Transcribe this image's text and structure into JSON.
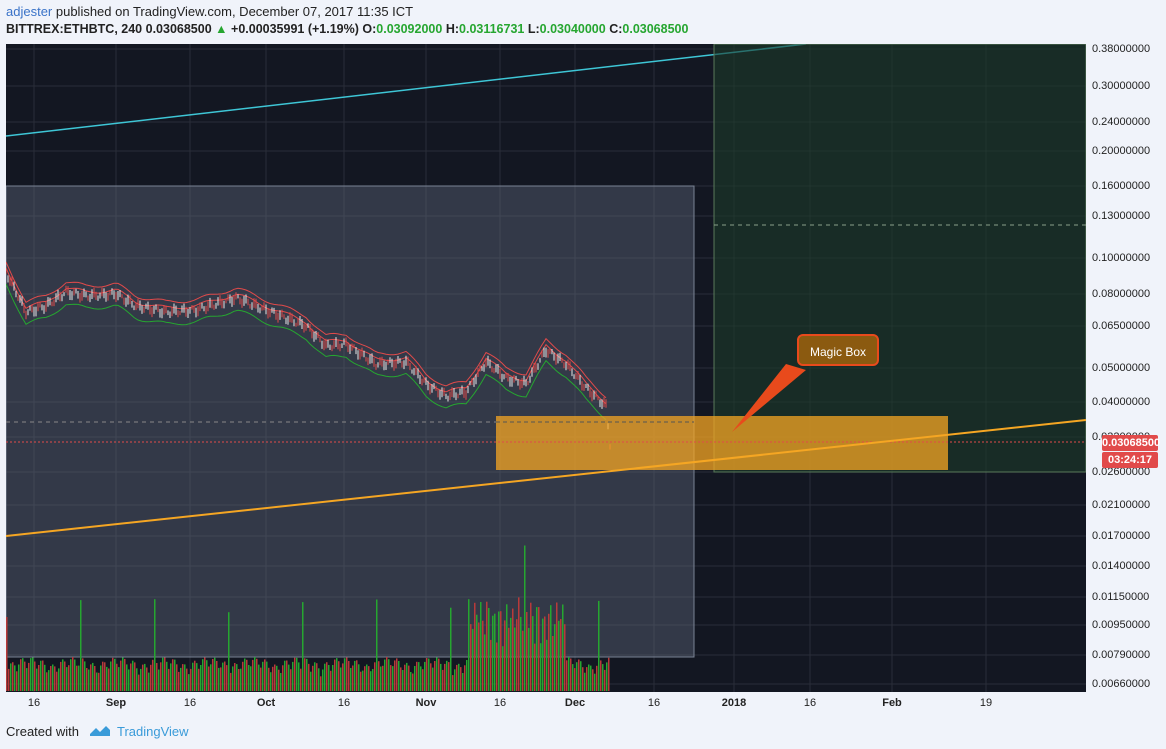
{
  "header": {
    "author": "adjester",
    "published_text": " published on TradingView.com, December 07, 2017 11:35 ICT",
    "symbol": "BITTREX:ETHBTC, 240",
    "last": "0.03068500",
    "change_arrow": "▲",
    "change": "+0.00035991 (+1.19%)",
    "o_label": "O:",
    "o_value": "0.03092000",
    "h_label": "H:",
    "h_value": "0.03116731",
    "l_label": "L:",
    "l_value": "0.03040000",
    "c_label": "C:",
    "c_value": "0.03068500"
  },
  "price_axis": {
    "labels": [
      "0.38000000",
      "0.30000000",
      "0.24000000",
      "0.20000000",
      "0.16000000",
      "0.13000000",
      "0.10000000",
      "0.08000000",
      "0.06500000",
      "0.05000000",
      "0.04000000",
      "0.03200000",
      "0.02600000",
      "0.02100000",
      "0.01700000",
      "0.01400000",
      "0.01150000",
      "0.00950000",
      "0.00790000",
      "0.00660000"
    ],
    "current_price": "0.03068500",
    "countdown": "03:24:17"
  },
  "time_axis": {
    "labels": [
      "16",
      "Sep",
      "16",
      "Oct",
      "16",
      "Nov",
      "16",
      "Dec",
      "16",
      "2018",
      "16",
      "Feb",
      "19"
    ]
  },
  "annotation": {
    "label": "Magic Box"
  },
  "footer": {
    "created_with": "Created with",
    "brand": "TradingView"
  },
  "colors": {
    "background": "#131722",
    "up": "#26a630",
    "down": "#e14a4a",
    "magic_box": "#f5a623",
    "trend_cyan": "#3ec6d6",
    "trend_orange": "#f5a623"
  }
}
